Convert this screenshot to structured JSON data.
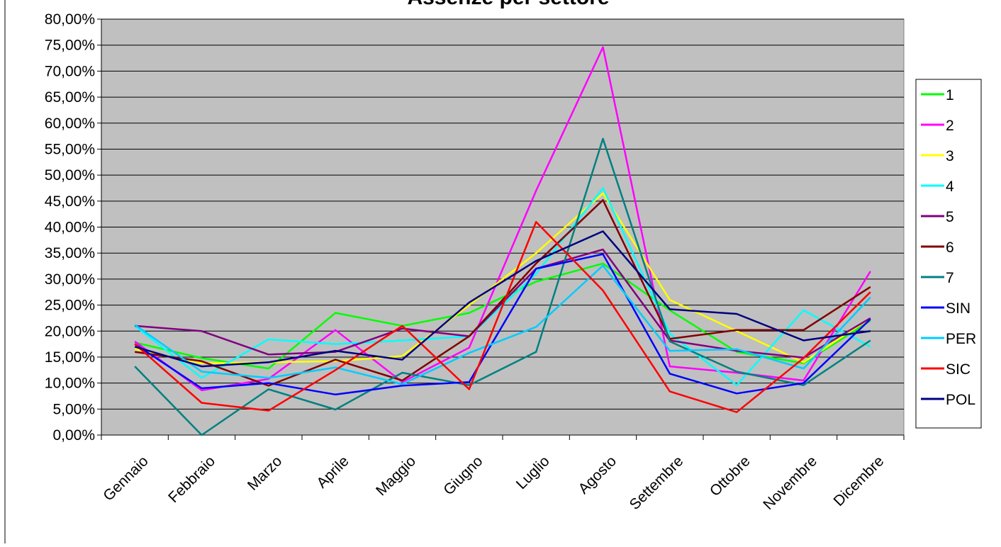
{
  "chart_data": {
    "type": "line",
    "title": "Assenze per settore",
    "xlabel": "",
    "ylabel": "",
    "ylim": [
      0,
      80
    ],
    "y_ticks": [
      "0,00%",
      "5,00%",
      "10,00%",
      "15,00%",
      "20,00%",
      "25,00%",
      "30,00%",
      "35,00%",
      "40,00%",
      "45,00%",
      "50,00%",
      "55,00%",
      "60,00%",
      "65,00%",
      "70,00%",
      "75,00%",
      "80,00%"
    ],
    "categories": [
      "Gennaio",
      "Febbraio",
      "Marzo",
      "Aprile",
      "Maggio",
      "Giugno",
      "Luglio",
      "Agosto",
      "Settembre",
      "Ottobre",
      "Novembre",
      "Dicembre"
    ],
    "grid": true,
    "plot_background": "#c0c0c0",
    "legend_position": "right",
    "series": [
      {
        "name": "1",
        "color": "#00ff00",
        "values": [
          17.8,
          14.8,
          12.8,
          23.5,
          21.0,
          23.5,
          29.5,
          33.0,
          24.0,
          16.0,
          13.8,
          22.0
        ]
      },
      {
        "name": "2",
        "color": "#ff00ff",
        "values": [
          18.0,
          8.6,
          10.8,
          20.2,
          10.2,
          16.8,
          47.0,
          74.6,
          13.2,
          12.0,
          10.5,
          31.5
        ]
      },
      {
        "name": "3",
        "color": "#ffff00",
        "values": [
          16.5,
          13.8,
          14.0,
          14.2,
          15.2,
          25.0,
          35.0,
          46.5,
          26.0,
          20.0,
          14.0,
          22.5
        ]
      },
      {
        "name": "4",
        "color": "#00ffff",
        "values": [
          21.0,
          11.0,
          18.4,
          17.5,
          18.2,
          19.0,
          31.0,
          47.5,
          19.5,
          9.6,
          24.0,
          17.0
        ]
      },
      {
        "name": "5",
        "color": "#800080",
        "values": [
          21.0,
          20.0,
          15.5,
          16.0,
          20.5,
          19.0,
          32.0,
          35.7,
          18.2,
          16.2,
          14.9,
          22.5
        ]
      },
      {
        "name": "6",
        "color": "#800000",
        "values": [
          16.0,
          14.2,
          9.5,
          14.5,
          10.5,
          19.0,
          33.0,
          45.2,
          18.5,
          20.2,
          20.2,
          28.5
        ]
      },
      {
        "name": "7",
        "color": "#008080",
        "values": [
          13.2,
          0.0,
          8.8,
          4.9,
          12.0,
          9.6,
          16.0,
          57.0,
          18.0,
          12.2,
          9.6,
          18.2
        ]
      },
      {
        "name": "SIN",
        "color": "#0000ff",
        "values": [
          17.5,
          9.0,
          10.0,
          7.8,
          9.5,
          10.2,
          32.0,
          34.8,
          11.8,
          8.0,
          10.0,
          22.3
        ]
      },
      {
        "name": "PER",
        "color": "#00ccff",
        "values": [
          21.2,
          12.2,
          11.0,
          13.0,
          9.8,
          15.8,
          20.8,
          32.6,
          16.2,
          16.5,
          12.8,
          26.5
        ]
      },
      {
        "name": "SIC",
        "color": "#ff0000",
        "values": [
          17.5,
          6.2,
          4.7,
          12.5,
          21.0,
          8.8,
          41.0,
          27.8,
          8.4,
          4.4,
          14.8,
          27.5
        ]
      },
      {
        "name": "POL",
        "color": "#000080",
        "values": [
          17.0,
          13.2,
          14.0,
          16.2,
          14.5,
          25.5,
          33.5,
          39.2,
          24.2,
          23.3,
          18.2,
          20.0
        ]
      }
    ]
  }
}
